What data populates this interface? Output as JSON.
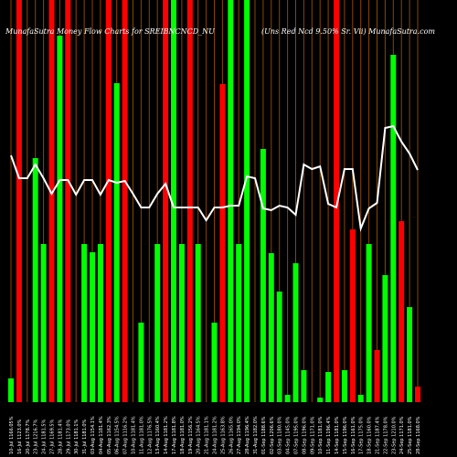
{
  "header": {
    "left": "MunafaSutra  Money Flow  Charts for SREIBNCNCD_NU",
    "right": "(Uns Red Ncd 9.50% Sr. Vii) MunafaSutra.com"
  },
  "colors": {
    "background": "#000000",
    "bar_up": "#00ff00",
    "bar_down": "#ff0000",
    "grid_line": "#8b4500",
    "price_line": "#ffffff",
    "text": "#ffffff"
  },
  "chart_data": {
    "type": "bar",
    "title": "",
    "ylim": [
      0,
      440
    ],
    "bars": [
      {
        "label": "10-Jul 1166.05%",
        "value": 26,
        "color": "green",
        "full": false
      },
      {
        "label": "16-Jul 1123.0%",
        "value": 0,
        "color": "red",
        "full": true
      },
      {
        "label": "20-Jul 1178.7%",
        "value": 0,
        "color": "red",
        "full": false
      },
      {
        "label": "23-Jul 1216.7%",
        "value": 267,
        "color": "green",
        "full": false
      },
      {
        "label": "24-Jul 1181.5%",
        "value": 173,
        "color": "green",
        "full": false
      },
      {
        "label": "27-Jul 1169.5%",
        "value": 0,
        "color": "red",
        "full": true
      },
      {
        "label": "28-Jul 1181.4%",
        "value": 401,
        "color": "green",
        "full": false
      },
      {
        "label": "29-Jul 1173.0%",
        "value": 0,
        "color": "red",
        "full": true
      },
      {
        "label": "30-Jul 1181.1%",
        "value": 0,
        "color": "red",
        "full": false
      },
      {
        "label": "31-Jul 1181.0%",
        "value": 173,
        "color": "green",
        "full": false
      },
      {
        "label": "03-Aug 1154.1%",
        "value": 164,
        "color": "green",
        "full": false
      },
      {
        "label": "04-Aug 1181.4%",
        "value": 173,
        "color": "green",
        "full": false
      },
      {
        "label": "05-Aug 1162.3%",
        "value": 0,
        "color": "red",
        "full": true
      },
      {
        "label": "06-Aug 1154.5%",
        "value": 349,
        "color": "green",
        "full": false
      },
      {
        "label": "07-Aug 1116.2%",
        "value": 0,
        "color": "red",
        "full": true
      },
      {
        "label": "10-Aug 1181.4%",
        "value": 0,
        "color": "red",
        "full": false
      },
      {
        "label": "11-Aug 1181.0%",
        "value": 87,
        "color": "green",
        "full": false
      },
      {
        "label": "12-Aug 1176.5%",
        "value": 0,
        "color": "red",
        "full": false
      },
      {
        "label": "13-Aug 1160.4%",
        "value": 173,
        "color": "green",
        "full": false
      },
      {
        "label": "14-Aug 1181.2%",
        "value": 0,
        "color": "red",
        "full": true
      },
      {
        "label": "17-Aug 1181.8%",
        "value": 0,
        "color": "green",
        "full": true
      },
      {
        "label": "18-Aug 1181.0%",
        "value": 173,
        "color": "green",
        "full": false
      },
      {
        "label": "19-Aug 1156.2%",
        "value": 0,
        "color": "red",
        "full": true
      },
      {
        "label": "20-Aug 1164.5%",
        "value": 173,
        "color": "green",
        "full": false
      },
      {
        "label": "21-Aug 1181.1%",
        "value": 0,
        "color": "red",
        "full": false
      },
      {
        "label": "24-Aug 1181.2%",
        "value": 87,
        "color": "green",
        "full": false
      },
      {
        "label": "25-Aug 1163.8%",
        "value": 348,
        "color": "red",
        "full": false
      },
      {
        "label": "26-Aug 1165.0%",
        "value": 0,
        "color": "green",
        "full": true
      },
      {
        "label": "27-Aug 1194.0%",
        "value": 173,
        "color": "green",
        "full": false
      },
      {
        "label": "28-Aug 1196.4%",
        "value": 0,
        "color": "green",
        "full": true
      },
      {
        "label": "31-Aug 1182.0%",
        "value": 0,
        "color": "red",
        "full": false
      },
      {
        "label": "01-Sep 1188.6%",
        "value": 277,
        "color": "green",
        "full": false
      },
      {
        "label": "02-Sep 1206.6%",
        "value": 163,
        "color": "green",
        "full": false
      },
      {
        "label": "03-Sep 1180.0%",
        "value": 121,
        "color": "green",
        "full": false
      },
      {
        "label": "04-Sep 1145.0%",
        "value": 8,
        "color": "green",
        "full": false
      },
      {
        "label": "07-Sep 1195.0%",
        "value": 152,
        "color": "green",
        "full": false
      },
      {
        "label": "08-Sep 1196.0%",
        "value": 35,
        "color": "green",
        "full": false
      },
      {
        "label": "09-Sep 1171.0%",
        "value": 0,
        "color": "red",
        "full": false
      },
      {
        "label": "10-Sep 1181.0%",
        "value": 5,
        "color": "green",
        "full": false
      },
      {
        "label": "11-Sep 1196.4%",
        "value": 33,
        "color": "green",
        "full": false
      },
      {
        "label": "14-Sep 1181.0%",
        "value": 0,
        "color": "red",
        "full": true
      },
      {
        "label": "15-Sep 1196.0%",
        "value": 35,
        "color": "green",
        "full": false
      },
      {
        "label": "16-Sep 1161.0%",
        "value": 189,
        "color": "red",
        "full": false
      },
      {
        "label": "17-Sep 1175.0%",
        "value": 8,
        "color": "green",
        "full": false
      },
      {
        "label": "18-Sep 1160.0%",
        "value": 173,
        "color": "green",
        "full": false
      },
      {
        "label": "21-Sep 1187.4%",
        "value": 57,
        "color": "red",
        "full": false
      },
      {
        "label": "22-Sep 1178.0%",
        "value": 139,
        "color": "green",
        "full": false
      },
      {
        "label": "23-Sep 1210.0%",
        "value": 380,
        "color": "green",
        "full": false
      },
      {
        "label": "24-Sep 1171.0%",
        "value": 198,
        "color": "red",
        "full": false
      },
      {
        "label": "25-Sep 1181.0%",
        "value": 104,
        "color": "green",
        "full": false
      },
      {
        "label": "28-Sep 1168.0%",
        "value": 17,
        "color": "red",
        "full": false
      }
    ],
    "price_line": [
      270,
      245,
      245,
      260,
      245,
      228,
      243,
      243,
      227,
      243,
      243,
      227,
      243,
      240,
      242,
      228,
      213,
      213,
      228,
      239,
      213,
      213,
      213,
      213,
      199,
      213,
      213,
      215,
      215,
      247,
      245,
      212,
      210,
      215,
      213,
      205,
      260,
      255,
      258,
      217,
      213,
      255,
      255,
      190,
      212,
      218,
      300,
      302,
      285,
      272,
      254
    ]
  }
}
